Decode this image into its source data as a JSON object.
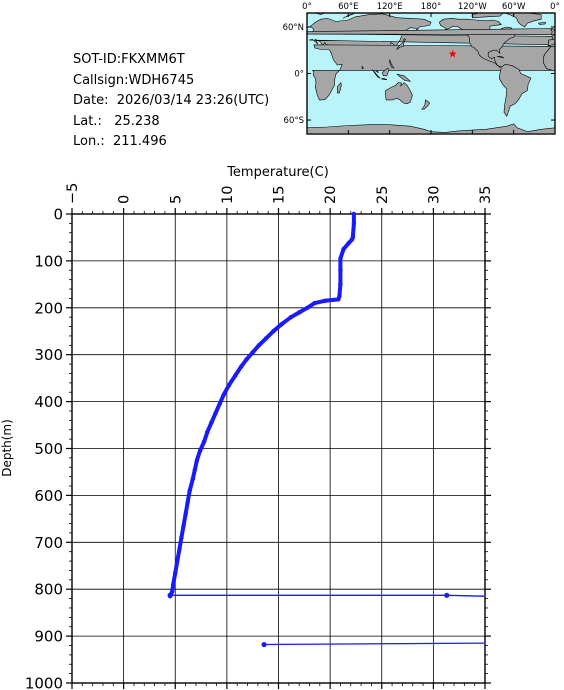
{
  "info": {
    "sot_id": "SOT-ID:FKXMM6T",
    "callsign": "Callsign:WDH6745",
    "date": "Date:  2026/03/14 23:26(UTC)",
    "lat": "Lat.:   25.238",
    "lon": "Lon.:  211.496"
  },
  "map": {
    "top_labels": [
      "0°",
      "60°E",
      "120°E",
      "180°",
      "120°W",
      "60°W",
      "0°"
    ],
    "left_labels": [
      "60°N",
      "0°",
      "60°S"
    ],
    "ocean_color": "#b8f4fa",
    "land_color": "#a6a6a6",
    "marker_color": "#ff0000",
    "marker_lon": 211.496,
    "marker_lat": 25.238
  },
  "chart_data": {
    "type": "line",
    "xlabel": "Temperature(C)",
    "ylabel": "Depth(m)",
    "xlim": [
      -5,
      35
    ],
    "ylim": [
      0,
      1000
    ],
    "x_ticks": [
      -5,
      0,
      5,
      10,
      15,
      20,
      25,
      30,
      35
    ],
    "y_ticks": [
      0,
      100,
      200,
      300,
      400,
      500,
      600,
      700,
      800,
      900,
      1000
    ],
    "grid": true,
    "line_color": "#1a1aff",
    "series": [
      {
        "temperature": [
          22.3,
          22.3,
          22.2,
          22.1,
          21.8,
          21.3,
          21.0,
          21.0,
          21.0,
          20.9,
          20.8,
          19.5,
          18.5,
          17.8,
          17.0,
          16.2,
          15.3,
          14.5,
          13.8,
          13.1,
          12.5,
          11.9,
          11.4,
          10.8,
          10.2,
          9.7,
          9.3,
          8.9,
          8.5,
          8.1,
          7.8,
          7.4,
          7.1,
          6.9,
          6.7,
          6.4,
          6.2,
          6.0,
          5.8,
          5.6,
          5.4,
          5.2,
          5.0,
          4.8,
          4.7,
          4.5
        ],
        "depth": [
          0,
          20,
          50,
          55,
          62,
          75,
          95,
          120,
          150,
          175,
          182,
          185,
          190,
          200,
          210,
          220,
          235,
          250,
          265,
          280,
          295,
          310,
          325,
          345,
          365,
          385,
          405,
          425,
          445,
          465,
          485,
          505,
          525,
          545,
          565,
          590,
          615,
          640,
          665,
          690,
          715,
          740,
          765,
          790,
          805,
          815
        ]
      },
      {
        "temperature": [
          4.5,
          31.3,
          35
        ],
        "depth": [
          813,
          813,
          815
        ]
      },
      {
        "temperature": [
          13.6,
          35
        ],
        "depth": [
          918,
          915
        ]
      }
    ]
  }
}
